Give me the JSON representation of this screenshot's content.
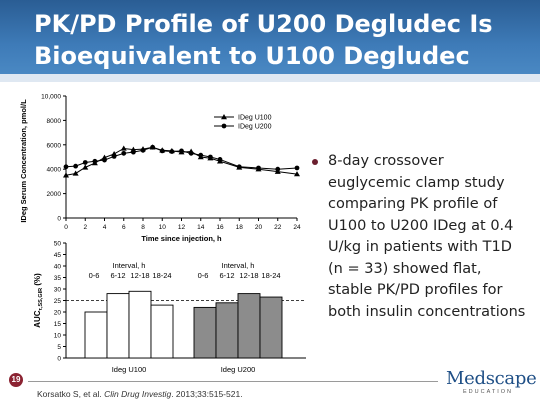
{
  "slide": {
    "title": "PK/PD Profile of U200 Degludec Is Bioequivalent to U100 Degludec",
    "bullet": "8-day crossover euglycemic clamp study comparing PK profile of U100 to U200 IDeg at 0.4 U/kg in patients with T1D (n = 33) showed flat, stable PK/PD profiles for both insulin concentrations",
    "page_number": "19",
    "citation_authors": "Korsatko S, et al. ",
    "citation_journal": "Clin Drug Investig",
    "citation_rest": ". 2013;33:515-521.",
    "logo_name": "Medscape",
    "logo_sub": "EDUCATION",
    "colors": {
      "header": "#3e7bb8",
      "bullet": "#6b1f2f",
      "bar_u200": "#8c8c8c",
      "bar_u100": "#ffffff"
    }
  },
  "chart_data": [
    {
      "type": "line",
      "xlabel": "Time since injection, h",
      "ylabel": "IDeg Serum Concentration, pmol/L",
      "xlim": [
        0,
        24
      ],
      "ylim": [
        0,
        10000
      ],
      "xticks": [
        0,
        2,
        4,
        6,
        8,
        10,
        12,
        14,
        16,
        18,
        20,
        22,
        24
      ],
      "yticks": [
        0,
        2000,
        4000,
        6000,
        8000,
        10000
      ],
      "ytick_labels": [
        "0",
        "2000",
        "4000",
        "6000",
        "8000",
        "10,000"
      ],
      "legend_position": "top-right",
      "series": [
        {
          "name": "IDeg U100",
          "marker": "triangle",
          "x": [
            0,
            1,
            2,
            3,
            4,
            5,
            6,
            7,
            8,
            9,
            10,
            11,
            12,
            13,
            14,
            15,
            16,
            18,
            20,
            22,
            24
          ],
          "y": [
            3500,
            3650,
            4150,
            4500,
            4950,
            5250,
            5700,
            5600,
            5650,
            5800,
            5550,
            5500,
            5400,
            5450,
            5000,
            4900,
            4650,
            4150,
            4000,
            3800,
            3600
          ]
        },
        {
          "name": "IDeg U200",
          "marker": "circle",
          "x": [
            0,
            1,
            2,
            3,
            4,
            5,
            6,
            7,
            8,
            9,
            10,
            11,
            12,
            13,
            14,
            15,
            16,
            18,
            20,
            22,
            24
          ],
          "y": [
            4200,
            4250,
            4550,
            4650,
            4750,
            5050,
            5300,
            5400,
            5550,
            5800,
            5500,
            5450,
            5500,
            5300,
            5150,
            5000,
            4800,
            4200,
            4100,
            4000,
            4100
          ]
        }
      ]
    },
    {
      "type": "bar",
      "ylabel_main": "AUC",
      "ylabel_sub": "τ,SS,GIR",
      "ylabel_unit": " (%)",
      "ylim": [
        0,
        50
      ],
      "yticks": [
        0,
        5,
        10,
        15,
        20,
        25,
        30,
        35,
        40,
        45,
        50
      ],
      "reference_line": 25,
      "interval_label": "Interval, h",
      "categories": [
        "0-6",
        "6-12",
        "12-18",
        "18-24"
      ],
      "series": [
        {
          "name": "Ideg U100",
          "values": [
            20,
            28,
            29,
            23
          ]
        },
        {
          "name": "Ideg U200",
          "values": [
            22,
            24,
            28,
            26.5
          ]
        }
      ]
    }
  ]
}
